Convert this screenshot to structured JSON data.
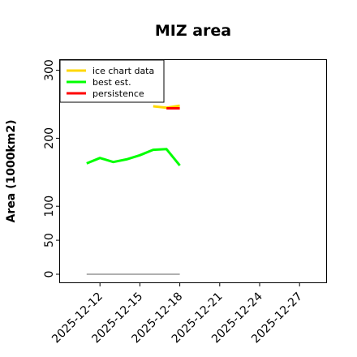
{
  "chart_data": {
    "type": "line",
    "title": "MIZ area",
    "xlabel": "",
    "ylabel": "Area (1000km2)",
    "ylim": [
      0,
      315
    ],
    "xlim": [
      "2025-12-09",
      "2025-12-29"
    ],
    "yticks": [
      0,
      50,
      100,
      200,
      300
    ],
    "xticks": [
      "2025-12-12",
      "2025-12-15",
      "2025-12-18",
      "2025-12-21",
      "2025-12-24",
      "2025-12-27"
    ],
    "legend_position": "top-left",
    "series": [
      {
        "name": "ice chart data",
        "color": "#FFD700",
        "points": [
          {
            "x": "2025-12-16",
            "y": 247
          },
          {
            "x": "2025-12-17",
            "y": 245
          },
          {
            "x": "2025-12-18",
            "y": 248
          }
        ]
      },
      {
        "name": "best est.",
        "color": "#00FF00",
        "points": [
          {
            "x": "2025-12-11",
            "y": 163
          },
          {
            "x": "2025-12-12",
            "y": 171
          },
          {
            "x": "2025-12-13",
            "y": 165
          },
          {
            "x": "2025-12-14",
            "y": 169
          },
          {
            "x": "2025-12-15",
            "y": 175
          },
          {
            "x": "2025-12-16",
            "y": 183
          },
          {
            "x": "2025-12-17",
            "y": 184
          },
          {
            "x": "2025-12-18",
            "y": 160
          }
        ]
      },
      {
        "name": "persistence",
        "color": "#FF0000",
        "points": [
          {
            "x": "2025-12-17",
            "y": 244
          },
          {
            "x": "2025-12-18",
            "y": 244
          }
        ]
      },
      {
        "name": "",
        "color": "#808080",
        "points": [
          {
            "x": "2025-12-11",
            "y": 0
          },
          {
            "x": "2025-12-18",
            "y": 0
          }
        ]
      }
    ]
  }
}
